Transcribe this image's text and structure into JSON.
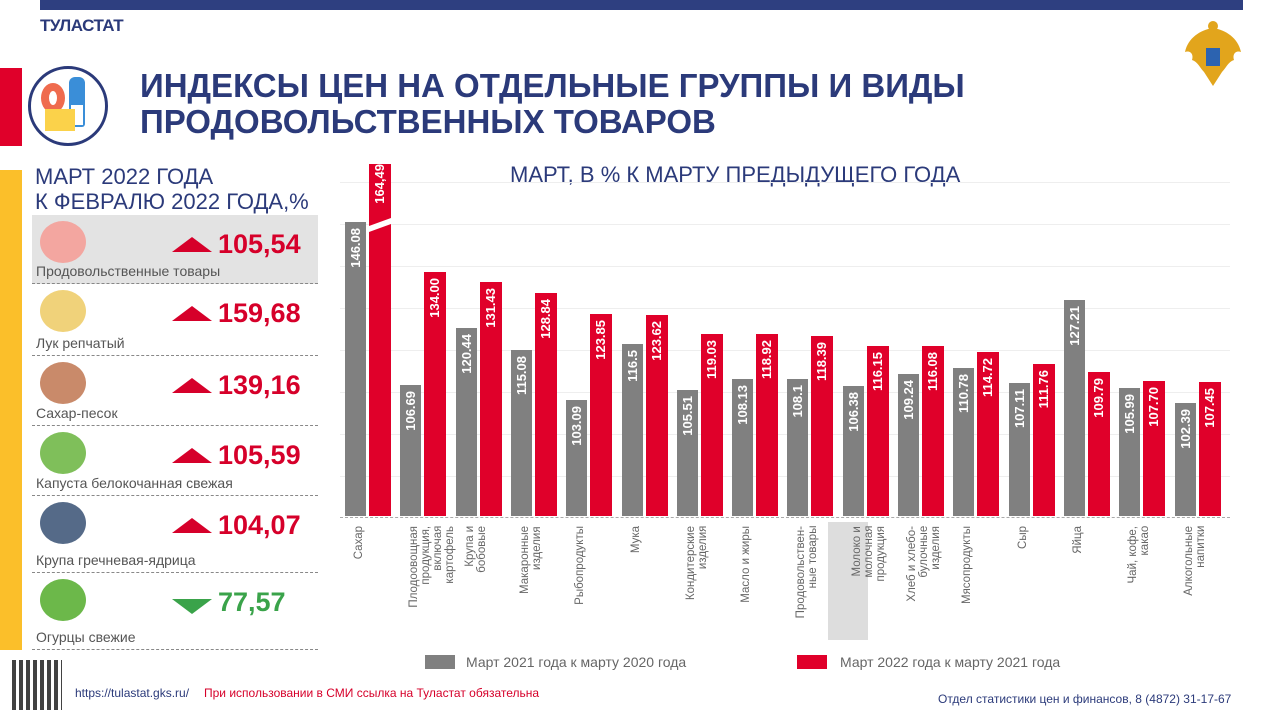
{
  "header": {
    "brand": "ТУЛАСТАТ",
    "title_line1": "ИНДЕКСЫ ЦЕН НА ОТДЕЛЬНЫЕ ГРУППЫ И ВИДЫ",
    "title_line2": "ПРОДОВОЛЬСТВЕННЫХ ТОВАРОВ"
  },
  "left_panel": {
    "heading_line1": "МАРТ 2022 ГОДА",
    "heading_line2": "К ФЕВРАЛЮ 2022 ГОДА,%",
    "items": [
      {
        "label": "Продовольственные товары",
        "value": "105,54",
        "trend": "up",
        "icon": "food-basket-icon",
        "highlighted": true
      },
      {
        "label": "Лук репчатый",
        "value": "159,68",
        "trend": "up",
        "icon": "onion-icon"
      },
      {
        "label": "Сахар-песок",
        "value": "139,16",
        "trend": "up",
        "icon": "sugar-bowl-icon"
      },
      {
        "label": "Капуста белокочанная свежая",
        "value": "105,59",
        "trend": "up",
        "icon": "cabbage-icon"
      },
      {
        "label": "Крупа гречневая-ядрица",
        "value": "104,07",
        "trend": "up",
        "icon": "buckwheat-bowl-icon"
      },
      {
        "label": "Огурцы свежие",
        "value": "77,57",
        "trend": "down",
        "icon": "cucumber-icon"
      }
    ],
    "colors": {
      "up": "#d6002a",
      "down": "#3aa34a"
    }
  },
  "chart_data": {
    "type": "bar",
    "title": "МАРТ, В % К МАРТУ ПРЕДЫДУЩЕГО ГОДА",
    "categories": [
      "Сахар",
      "Плодоовощная\nпродукция,\nвключая\nкартофель",
      "Крупа и\nбобовые",
      "Макаронные\nизделия",
      "Рыбопродукты",
      "Мука",
      "Кондитерские\nизделия",
      "Масло и жиры",
      "Продовольствен-\nные товары",
      "Молоко и\nмолочная\nпродукция",
      "Хлеб и хлебо-\nбулочные\nизделия",
      "Мясопродукты",
      "Сыр",
      "Яйца",
      "Чай, кофе,\nкакао",
      "Алкогольные\nнапитки"
    ],
    "highlighted_category": "Продовольствен-\nные товары",
    "series": [
      {
        "name": "Март 2021 года к марту 2020 года",
        "color": "#808080",
        "values": [
          146.08,
          106.69,
          120.44,
          115.08,
          103.09,
          116.5,
          105.51,
          108.13,
          108.1,
          106.38,
          109.24,
          110.78,
          107.11,
          127.21,
          105.99,
          102.39
        ],
        "labels": [
          "146.08",
          "106.69",
          "120.44",
          "115.08",
          "103.09",
          "116.5",
          "105.51",
          "108.13",
          "108.1",
          "106.38",
          "109.24",
          "110.78",
          "107.11",
          "127.21",
          "105.99",
          "102.39"
        ]
      },
      {
        "name": "Март 2022 года к марту 2021 года",
        "color": "#e0002a",
        "values": [
          164.49,
          134.0,
          131.43,
          128.84,
          123.85,
          123.62,
          119.03,
          118.92,
          118.39,
          116.15,
          116.08,
          114.72,
          111.76,
          109.79,
          107.7,
          107.45
        ],
        "labels": [
          "164,49",
          "134.00",
          "131.43",
          "128.84",
          "123.85",
          "123.62",
          "119.03",
          "118.92",
          "118.39",
          "116.15",
          "116.08",
          "114.72",
          "111.76",
          "109.79",
          "107.70",
          "107.45"
        ]
      }
    ],
    "ylim": [
      75,
      160
    ],
    "axis_break": true,
    "grid": true,
    "legend": "bottom"
  },
  "footer": {
    "url": "https://tulastat.gks.ru/",
    "note": "При использовании  в СМИ ссылка на Туластат  обязательна",
    "contact": "Отдел  статистики  цен и финансов,  8 (4872)  31-17-67"
  }
}
